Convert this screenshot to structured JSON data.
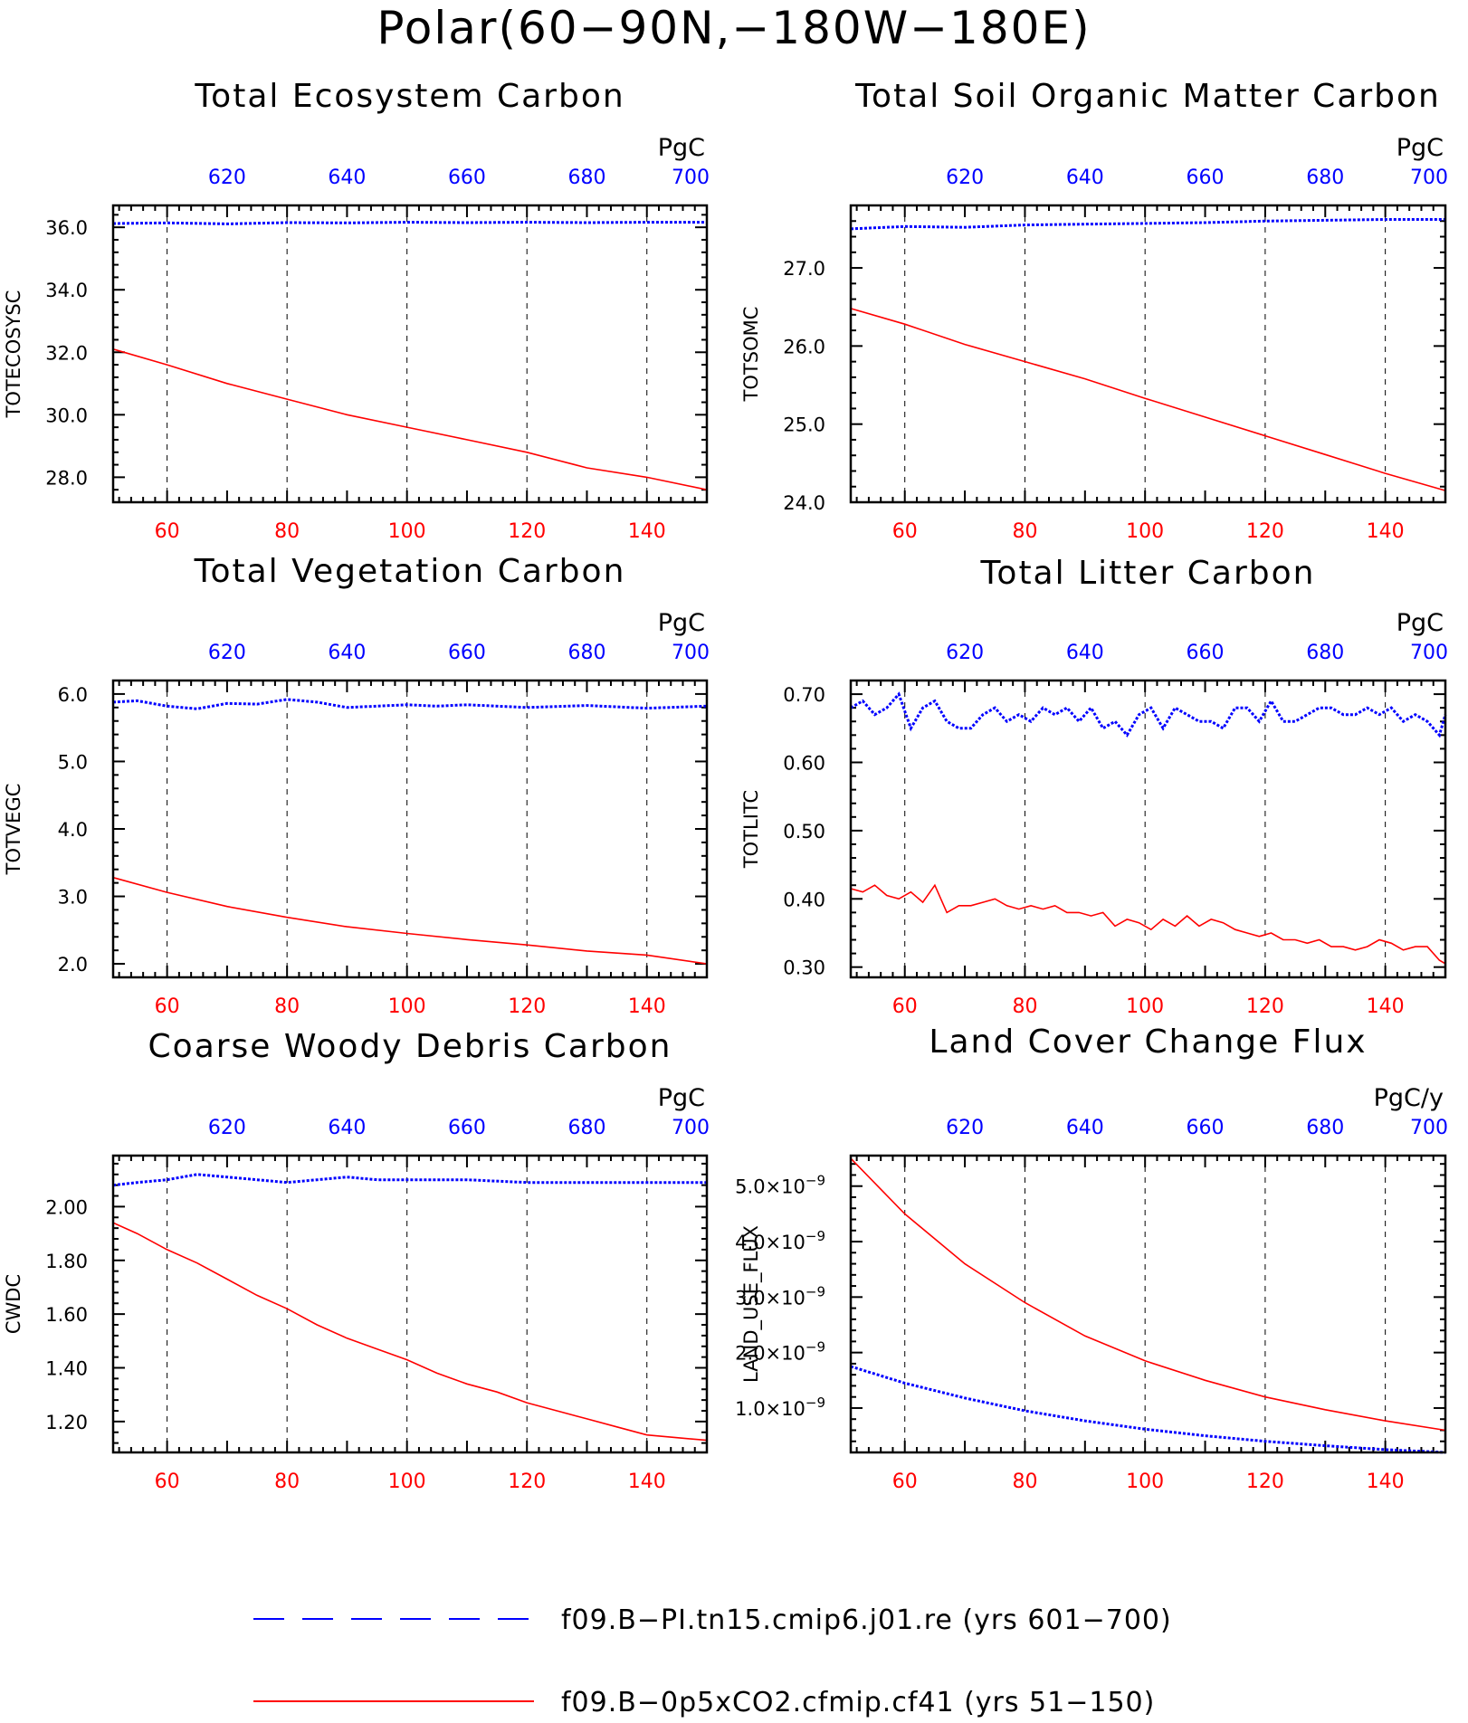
{
  "figure": {
    "title": "Polar(60−90N,−180W−180E)",
    "colors": {
      "series_ctrl": "#0000ff",
      "series_exp": "#ff0000",
      "frame": "#000000",
      "grid": "#000000"
    }
  },
  "legend": [
    {
      "label": "f09.B−PI.tn15.cmip6.j01.re (yrs 601−700)",
      "color": "#0000ff",
      "style": "dashed"
    },
    {
      "label": "f09.B−0p5xCO2.cfmip.cf41 (yrs 51−150)",
      "color": "#ff0000",
      "style": "solid"
    }
  ],
  "chart_data": [
    {
      "type": "line",
      "title": "Total Ecosystem Carbon",
      "ylabel": "TOTECOSYSC",
      "unit": "PgC",
      "xlim": [
        51,
        150
      ],
      "x_top_lim": [
        601,
        700
      ],
      "ylim": [
        27.2,
        36.7
      ],
      "x_ticks": [
        60,
        80,
        100,
        120,
        140
      ],
      "x_top_ticks": [
        620,
        640,
        660,
        680,
        700
      ],
      "y_ticks": [
        {
          "v": 28.0,
          "label": "28.0"
        },
        {
          "v": 30.0,
          "label": "30.0"
        },
        {
          "v": 32.0,
          "label": "32.0"
        },
        {
          "v": 34.0,
          "label": "34.0"
        },
        {
          "v": 36.0,
          "label": "36.0"
        }
      ],
      "series": [
        {
          "color": "#0000ff",
          "style": "dotted",
          "x": [
            601,
            610,
            620,
            630,
            640,
            650,
            660,
            670,
            680,
            690,
            700
          ],
          "y": [
            36.12,
            36.14,
            36.11,
            36.15,
            36.14,
            36.16,
            36.15,
            36.16,
            36.15,
            36.16,
            36.16
          ]
        },
        {
          "color": "#ff0000",
          "style": "solid",
          "x": [
            51,
            60,
            70,
            80,
            90,
            100,
            110,
            120,
            130,
            140,
            150
          ],
          "y": [
            32.1,
            31.6,
            31.0,
            30.5,
            30.0,
            29.6,
            29.2,
            28.8,
            28.3,
            28.0,
            27.6
          ]
        }
      ]
    },
    {
      "type": "line",
      "title": "Total Soil Organic Matter Carbon",
      "ylabel": "TOTSOMC",
      "unit": "PgC",
      "xlim": [
        51,
        150
      ],
      "x_top_lim": [
        601,
        700
      ],
      "ylim": [
        24.0,
        27.8
      ],
      "x_ticks": [
        60,
        80,
        100,
        120,
        140
      ],
      "x_top_ticks": [
        620,
        640,
        660,
        680,
        700
      ],
      "y_ticks": [
        {
          "v": 24.0,
          "label": "24.0"
        },
        {
          "v": 25.0,
          "label": "25.0"
        },
        {
          "v": 26.0,
          "label": "26.0"
        },
        {
          "v": 27.0,
          "label": "27.0"
        }
      ],
      "series": [
        {
          "color": "#0000ff",
          "style": "dotted",
          "x": [
            601,
            610,
            620,
            630,
            640,
            650,
            660,
            670,
            680,
            690,
            700
          ],
          "y": [
            27.5,
            27.53,
            27.52,
            27.55,
            27.56,
            27.57,
            27.58,
            27.6,
            27.61,
            27.62,
            27.62
          ]
        },
        {
          "color": "#ff0000",
          "style": "solid",
          "x": [
            51,
            60,
            70,
            80,
            90,
            100,
            110,
            120,
            130,
            140,
            150
          ],
          "y": [
            26.48,
            26.28,
            26.02,
            25.8,
            25.58,
            25.33,
            25.09,
            24.85,
            24.61,
            24.37,
            24.15
          ]
        }
      ]
    },
    {
      "type": "line",
      "title": "Total Vegetation Carbon",
      "ylabel": "TOTVEGC",
      "unit": "PgC",
      "xlim": [
        51,
        150
      ],
      "x_top_lim": [
        601,
        700
      ],
      "ylim": [
        1.8,
        6.2
      ],
      "x_ticks": [
        60,
        80,
        100,
        120,
        140
      ],
      "x_top_ticks": [
        620,
        640,
        660,
        680,
        700
      ],
      "y_ticks": [
        {
          "v": 2.0,
          "label": "2.0"
        },
        {
          "v": 3.0,
          "label": "3.0"
        },
        {
          "v": 4.0,
          "label": "4.0"
        },
        {
          "v": 5.0,
          "label": "5.0"
        },
        {
          "v": 6.0,
          "label": "6.0"
        }
      ],
      "series": [
        {
          "color": "#0000ff",
          "style": "dotted",
          "x": [
            601,
            605,
            610,
            615,
            620,
            625,
            630,
            635,
            640,
            645,
            650,
            655,
            660,
            670,
            680,
            690,
            700
          ],
          "y": [
            5.88,
            5.9,
            5.82,
            5.78,
            5.86,
            5.85,
            5.92,
            5.88,
            5.8,
            5.82,
            5.84,
            5.82,
            5.84,
            5.8,
            5.83,
            5.79,
            5.82
          ]
        },
        {
          "color": "#ff0000",
          "style": "solid",
          "x": [
            51,
            60,
            70,
            80,
            90,
            100,
            110,
            120,
            130,
            140,
            150
          ],
          "y": [
            3.28,
            3.06,
            2.85,
            2.69,
            2.55,
            2.45,
            2.36,
            2.28,
            2.19,
            2.13,
            2.0
          ]
        }
      ]
    },
    {
      "type": "line",
      "title": "Total Litter Carbon",
      "ylabel": "TOTLITC",
      "unit": "PgC",
      "xlim": [
        51,
        150
      ],
      "x_top_lim": [
        601,
        700
      ],
      "ylim": [
        0.285,
        0.72
      ],
      "x_ticks": [
        60,
        80,
        100,
        120,
        140
      ],
      "x_top_ticks": [
        620,
        640,
        660,
        680,
        700
      ],
      "y_ticks": [
        {
          "v": 0.3,
          "label": "0.30"
        },
        {
          "v": 0.4,
          "label": "0.40"
        },
        {
          "v": 0.5,
          "label": "0.50"
        },
        {
          "v": 0.6,
          "label": "0.60"
        },
        {
          "v": 0.7,
          "label": "0.70"
        }
      ],
      "series": [
        {
          "color": "#0000ff",
          "style": "dotted",
          "x": [
            601,
            603,
            605,
            607,
            609,
            611,
            613,
            615,
            617,
            619,
            621,
            623,
            625,
            627,
            629,
            631,
            633,
            635,
            637,
            639,
            641,
            643,
            645,
            647,
            649,
            651,
            653,
            655,
            657,
            659,
            661,
            663,
            665,
            667,
            669,
            671,
            673,
            675,
            677,
            679,
            681,
            683,
            685,
            687,
            689,
            691,
            693,
            695,
            697,
            699,
            700
          ],
          "y": [
            0.68,
            0.69,
            0.67,
            0.68,
            0.7,
            0.65,
            0.68,
            0.69,
            0.66,
            0.65,
            0.65,
            0.67,
            0.68,
            0.66,
            0.67,
            0.66,
            0.68,
            0.67,
            0.68,
            0.66,
            0.68,
            0.65,
            0.66,
            0.64,
            0.67,
            0.68,
            0.65,
            0.68,
            0.67,
            0.66,
            0.66,
            0.65,
            0.68,
            0.68,
            0.66,
            0.69,
            0.66,
            0.66,
            0.67,
            0.68,
            0.68,
            0.67,
            0.67,
            0.68,
            0.67,
            0.68,
            0.66,
            0.67,
            0.66,
            0.64,
            0.67
          ]
        },
        {
          "color": "#ff0000",
          "style": "solid",
          "x": [
            51,
            53,
            55,
            57,
            59,
            61,
            63,
            65,
            67,
            69,
            71,
            73,
            75,
            77,
            79,
            81,
            83,
            85,
            87,
            89,
            91,
            93,
            95,
            97,
            99,
            101,
            103,
            105,
            107,
            109,
            111,
            113,
            115,
            117,
            119,
            121,
            123,
            125,
            127,
            129,
            131,
            133,
            135,
            137,
            139,
            141,
            143,
            145,
            147,
            149,
            150
          ],
          "y": [
            0.415,
            0.41,
            0.42,
            0.405,
            0.4,
            0.41,
            0.395,
            0.42,
            0.38,
            0.39,
            0.39,
            0.395,
            0.4,
            0.39,
            0.385,
            0.39,
            0.385,
            0.39,
            0.38,
            0.38,
            0.375,
            0.38,
            0.36,
            0.37,
            0.365,
            0.355,
            0.37,
            0.36,
            0.375,
            0.36,
            0.37,
            0.365,
            0.355,
            0.35,
            0.345,
            0.35,
            0.34,
            0.34,
            0.335,
            0.34,
            0.33,
            0.33,
            0.325,
            0.33,
            0.34,
            0.335,
            0.325,
            0.33,
            0.33,
            0.31,
            0.305
          ]
        }
      ]
    },
    {
      "type": "line",
      "title": "Coarse Woody Debris Carbon",
      "ylabel": "CWDC",
      "unit": "PgC",
      "xlim": [
        51,
        150
      ],
      "x_top_lim": [
        601,
        700
      ],
      "ylim": [
        1.085,
        2.19
      ],
      "x_ticks": [
        60,
        80,
        100,
        120,
        140
      ],
      "x_top_ticks": [
        620,
        640,
        660,
        680,
        700
      ],
      "y_ticks": [
        {
          "v": 1.2,
          "label": "1.20"
        },
        {
          "v": 1.4,
          "label": "1.40"
        },
        {
          "v": 1.6,
          "label": "1.60"
        },
        {
          "v": 1.8,
          "label": "1.80"
        },
        {
          "v": 2.0,
          "label": "2.00"
        }
      ],
      "series": [
        {
          "color": "#0000ff",
          "style": "dotted",
          "x": [
            601,
            605,
            610,
            615,
            620,
            625,
            630,
            635,
            640,
            645,
            650,
            660,
            670,
            680,
            690,
            700
          ],
          "y": [
            2.08,
            2.09,
            2.1,
            2.12,
            2.11,
            2.1,
            2.09,
            2.1,
            2.11,
            2.1,
            2.1,
            2.1,
            2.09,
            2.09,
            2.09,
            2.09
          ]
        },
        {
          "color": "#ff0000",
          "style": "solid",
          "x": [
            51,
            55,
            60,
            65,
            70,
            75,
            80,
            85,
            90,
            95,
            100,
            105,
            110,
            115,
            120,
            125,
            130,
            135,
            140,
            145,
            150
          ],
          "y": [
            1.94,
            1.9,
            1.84,
            1.79,
            1.73,
            1.67,
            1.62,
            1.56,
            1.51,
            1.47,
            1.43,
            1.38,
            1.34,
            1.31,
            1.27,
            1.24,
            1.21,
            1.18,
            1.15,
            1.14,
            1.13
          ]
        }
      ]
    },
    {
      "type": "line",
      "title": "Land Cover Change Flux",
      "ylabel": "LAND_USE_FLUX",
      "unit": "PgC/y",
      "xlim": [
        51,
        150
      ],
      "x_top_lim": [
        601,
        700
      ],
      "ylim": [
        2e-10,
        5.55e-09
      ],
      "x_ticks": [
        60,
        80,
        100,
        120,
        140
      ],
      "x_top_ticks": [
        620,
        640,
        660,
        680,
        700
      ],
      "y_ticks": [
        {
          "v": 1e-09,
          "label": "1.0×10",
          "exp": "−9"
        },
        {
          "v": 2e-09,
          "label": "2.0×10",
          "exp": "−9"
        },
        {
          "v": 3e-09,
          "label": "3.0×10",
          "exp": "−9"
        },
        {
          "v": 4e-09,
          "label": "4.0×10",
          "exp": "−9"
        },
        {
          "v": 5e-09,
          "label": "5.0×10",
          "exp": "−9"
        }
      ],
      "series": [
        {
          "color": "#0000ff",
          "style": "dotted",
          "x": [
            601,
            610,
            620,
            630,
            640,
            650,
            660,
            670,
            680,
            690,
            700
          ],
          "y": [
            1.75e-09,
            1.45e-09,
            1.18e-09,
            9.5e-10,
            7.7e-10,
            6.2e-10,
            5e-10,
            4e-10,
            3.2e-10,
            2.5e-10,
            2e-10
          ]
        },
        {
          "color": "#ff0000",
          "style": "solid",
          "x": [
            51,
            60,
            70,
            80,
            90,
            100,
            110,
            120,
            130,
            140,
            150
          ],
          "y": [
            5.5e-09,
            4.5e-09,
            3.6e-09,
            2.9e-09,
            2.3e-09,
            1.85e-09,
            1.5e-09,
            1.2e-09,
            9.7e-10,
            7.7e-10,
            6e-10
          ]
        }
      ]
    }
  ]
}
